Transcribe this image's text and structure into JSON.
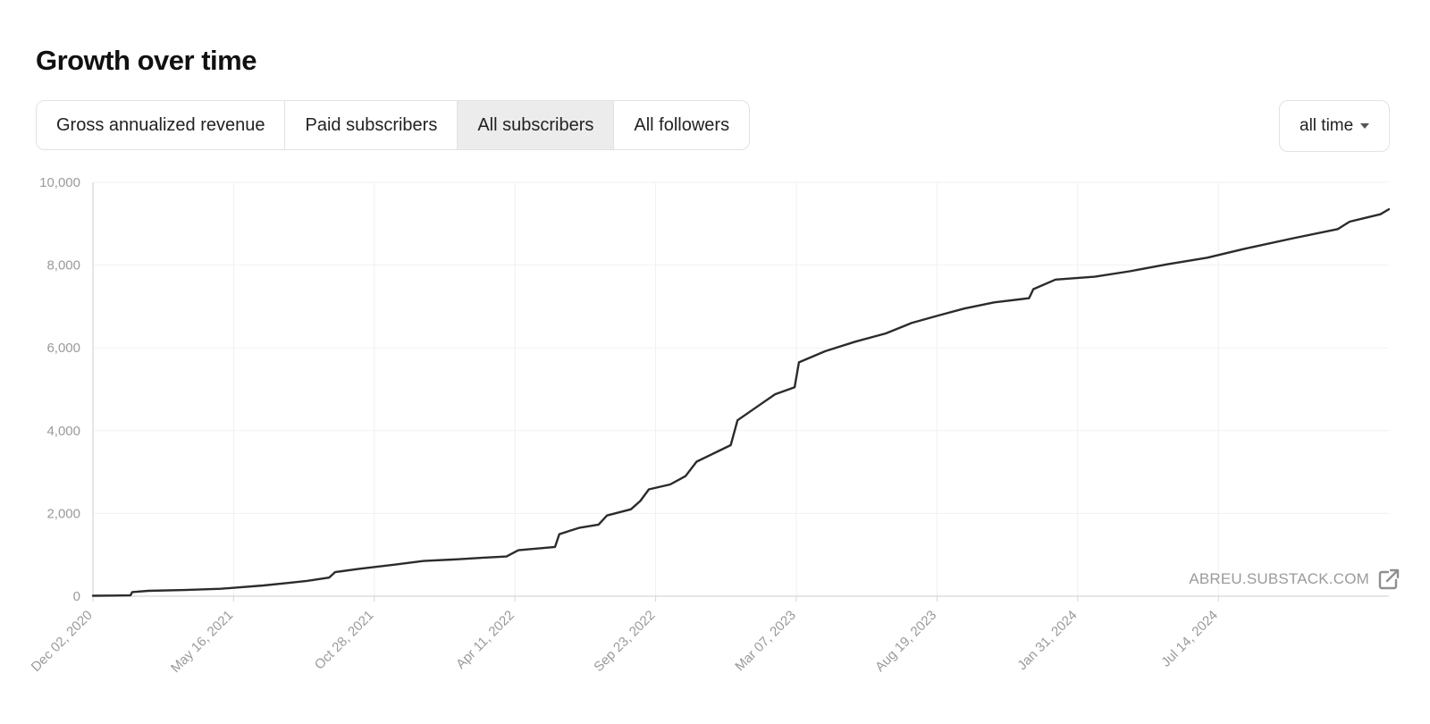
{
  "header": {
    "title": "Growth over time"
  },
  "tabs": [
    {
      "label": "Gross annualized revenue",
      "active": false
    },
    {
      "label": "Paid subscribers",
      "active": false
    },
    {
      "label": "All subscribers",
      "active": true
    },
    {
      "label": "All followers",
      "active": false
    }
  ],
  "range_select": {
    "value": "all time",
    "icon": "chevron-down-icon"
  },
  "watermark": {
    "text": "ABREU.SUBSTACK.COM",
    "icon": "external-link-icon"
  },
  "colors": {
    "line": "#2b2b2b",
    "grid": "#f1f1f1",
    "axis": "#d6d6d6",
    "tick_text": "#9a9a9a",
    "active_tab": "#ececec"
  },
  "chart_data": {
    "type": "line",
    "title": "",
    "xlabel": "",
    "ylabel": "",
    "grid": true,
    "ylim": [
      0,
      10000
    ],
    "y_ticks": [
      0,
      2000,
      4000,
      6000,
      8000,
      10000
    ],
    "y_tick_labels": [
      "0",
      "2,000",
      "4,000",
      "6,000",
      "8,000",
      "10,000"
    ],
    "xlim": [
      "2020-12-02",
      "2025-01-30"
    ],
    "x_ticks": [
      "2020-12-02",
      "2021-05-16",
      "2021-10-28",
      "2022-04-11",
      "2022-09-23",
      "2023-03-07",
      "2023-08-19",
      "2024-01-31",
      "2024-07-14"
    ],
    "x_tick_labels": [
      "Dec 02, 2020",
      "May 16, 2021",
      "Oct 28, 2021",
      "Apr 11, 2022",
      "Sep 23, 2022",
      "Mar 07, 2023",
      "Aug 19, 2023",
      "Jan 31, 2024",
      "Jul 14, 2024"
    ],
    "series": [
      {
        "name": "",
        "points": [
          [
            "2020-12-02",
            10
          ],
          [
            "2021-01-15",
            20
          ],
          [
            "2021-01-17",
            100
          ],
          [
            "2021-02-05",
            130
          ],
          [
            "2021-03-20",
            150
          ],
          [
            "2021-05-01",
            180
          ],
          [
            "2021-06-20",
            260
          ],
          [
            "2021-07-15",
            310
          ],
          [
            "2021-08-10",
            370
          ],
          [
            "2021-09-05",
            450
          ],
          [
            "2021-09-12",
            580
          ],
          [
            "2021-10-10",
            660
          ],
          [
            "2021-11-20",
            760
          ],
          [
            "2021-12-25",
            850
          ],
          [
            "2022-02-01",
            890
          ],
          [
            "2022-03-05",
            930
          ],
          [
            "2022-04-01",
            960
          ],
          [
            "2022-04-15",
            1110
          ],
          [
            "2022-05-28",
            1190
          ],
          [
            "2022-06-02",
            1500
          ],
          [
            "2022-06-25",
            1650
          ],
          [
            "2022-07-18",
            1730
          ],
          [
            "2022-07-28",
            1950
          ],
          [
            "2022-08-25",
            2100
          ],
          [
            "2022-09-05",
            2300
          ],
          [
            "2022-09-15",
            2580
          ],
          [
            "2022-10-10",
            2700
          ],
          [
            "2022-10-28",
            2900
          ],
          [
            "2022-11-10",
            3250
          ],
          [
            "2022-12-05",
            3500
          ],
          [
            "2022-12-20",
            3650
          ],
          [
            "2022-12-28",
            4250
          ],
          [
            "2023-01-25",
            4650
          ],
          [
            "2023-02-10",
            4880
          ],
          [
            "2023-03-05",
            5050
          ],
          [
            "2023-03-10",
            5650
          ],
          [
            "2023-04-10",
            5920
          ],
          [
            "2023-05-15",
            6150
          ],
          [
            "2023-06-20",
            6350
          ],
          [
            "2023-07-20",
            6600
          ],
          [
            "2023-08-20",
            6780
          ],
          [
            "2023-09-20",
            6950
          ],
          [
            "2023-10-25",
            7100
          ],
          [
            "2023-12-05",
            7200
          ],
          [
            "2023-12-10",
            7420
          ],
          [
            "2024-01-05",
            7650
          ],
          [
            "2024-02-20",
            7720
          ],
          [
            "2024-04-01",
            7850
          ],
          [
            "2024-05-15",
            8020
          ],
          [
            "2024-07-01",
            8180
          ],
          [
            "2024-08-15",
            8400
          ],
          [
            "2024-10-10",
            8650
          ],
          [
            "2024-12-01",
            8870
          ],
          [
            "2024-12-15",
            9050
          ],
          [
            "2025-01-20",
            9230
          ],
          [
            "2025-01-30",
            9350
          ]
        ]
      }
    ]
  }
}
